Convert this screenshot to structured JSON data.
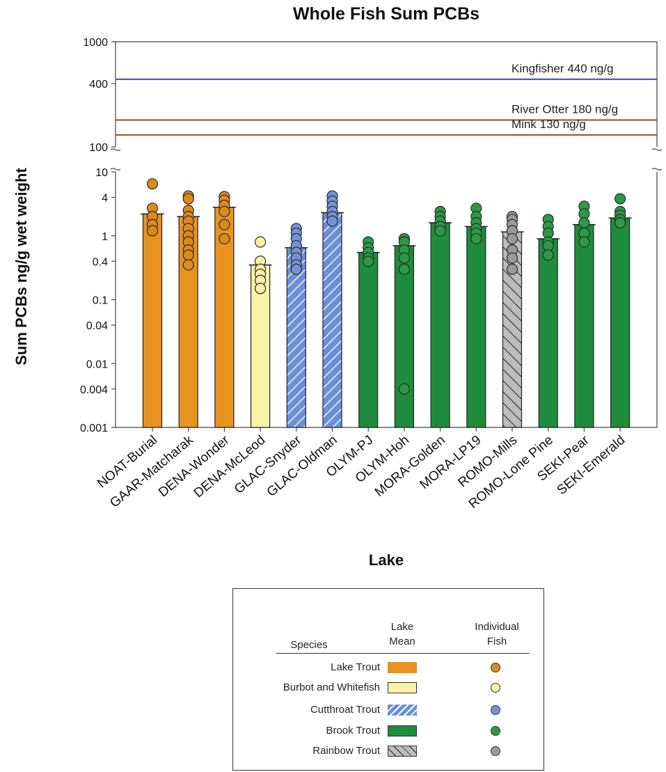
{
  "chart_data": {
    "type": "bar",
    "title": "Whole Fish Sum PCBs",
    "xlabel": "Lake",
    "ylabel": "Sum PCBs ng/g wet weight",
    "yscale": "log (broken axis)",
    "ylim_lower": [
      0.001,
      10
    ],
    "ylim_upper": [
      100,
      1000
    ],
    "yticks_lower": [
      "0.001",
      "0.004",
      "0.01",
      "0.04",
      "0.1",
      "0.4",
      "1",
      "4",
      "10"
    ],
    "yticks_upper": [
      "100",
      "400",
      "1000"
    ],
    "categories": [
      "NOAT-Burial",
      "GAAR-Matcharak",
      "DENA-Wonder",
      "DENA-McLeod",
      "GLAC-Snyder",
      "GLAC-Oldman",
      "OLYM-PJ",
      "OLYM-Hoh",
      "MORA-Golden",
      "MORA-LP19",
      "ROMO-Mills",
      "ROMO-Lone Pine",
      "SEKI-Pear",
      "SEKI-Emerald"
    ],
    "species": [
      "Lake Trout",
      "Lake Trout",
      "Lake Trout",
      "Burbot and Whitefish",
      "Cutthroat Trout",
      "Cutthroat Trout",
      "Brook Trout",
      "Brook Trout",
      "Brook Trout",
      "Brook Trout",
      "Rainbow Trout",
      "Brook Trout",
      "Brook Trout",
      "Brook Trout"
    ],
    "lake_means": [
      2.2,
      2.0,
      2.8,
      0.35,
      0.65,
      2.3,
      0.55,
      0.7,
      1.6,
      1.4,
      1.15,
      0.9,
      1.5,
      1.9
    ],
    "individual_fish": [
      [
        6.5,
        2.7,
        2.0,
        1.5,
        1.2
      ],
      [
        4.2,
        3.8,
        2.5,
        2.0,
        1.7,
        1.3,
        1.0,
        0.8,
        0.6,
        0.5,
        0.35
      ],
      [
        4.1,
        3.6,
        3.0,
        2.4,
        1.5,
        0.9
      ],
      [
        0.8,
        0.4,
        0.3,
        0.25,
        0.2,
        0.15
      ],
      [
        1.3,
        1.1,
        0.9,
        0.7,
        0.55,
        0.45,
        0.35,
        0.3
      ],
      [
        4.2,
        3.5,
        2.9,
        2.4,
        2.0,
        1.7
      ],
      [
        0.8,
        0.65,
        0.55,
        0.45,
        0.4
      ],
      [
        0.9,
        0.8,
        0.6,
        0.45,
        0.3,
        0.004
      ],
      [
        2.4,
        2.0,
        1.7,
        1.4,
        1.2
      ],
      [
        2.7,
        2.0,
        1.6,
        1.3,
        1.1,
        0.9
      ],
      [
        2.0,
        1.8,
        1.5,
        1.2,
        0.9,
        0.6,
        0.45,
        0.3
      ],
      [
        1.8,
        1.4,
        1.1,
        0.8,
        0.7,
        0.5
      ],
      [
        2.9,
        2.2,
        1.6,
        1.1,
        0.8
      ],
      [
        3.8,
        2.4,
        2.1,
        1.8,
        1.6
      ]
    ],
    "thresholds": [
      {
        "label": "Kingfisher 440 ng/g",
        "value": 440,
        "color": "#5b5ba8"
      },
      {
        "label": "River Otter 180 ng/g",
        "value": 180,
        "color": "#a0522d"
      },
      {
        "label": "Mink 130 ng/g",
        "value": 130,
        "color": "#a0522d"
      }
    ],
    "grid": false
  },
  "legend": {
    "header_species": "Species",
    "header_mean_1": "Lake",
    "header_mean_2": "Mean",
    "header_fish_1": "Individual",
    "header_fish_2": "Fish",
    "rows": [
      {
        "name": "Lake Trout",
        "key": "Lake Trout"
      },
      {
        "name": "Burbot and Whitefish",
        "key": "Burbot and Whitefish"
      },
      {
        "name": "Cutthroat Trout",
        "key": "Cutthroat Trout"
      },
      {
        "name": "Brook Trout",
        "key": "Brook Trout"
      },
      {
        "name": "Rainbow Trout",
        "key": "Rainbow Trout"
      }
    ]
  },
  "colors": {
    "Lake Trout": {
      "bar": "#e8921f",
      "dot": "#de8a1a"
    },
    "Burbot and Whitefish": {
      "bar": "#faf2a6",
      "dot": "#fbf1a4"
    },
    "Cutthroat Trout": {
      "bar": "#6b8ed6",
      "dot": "#7592d6"
    },
    "Brook Trout": {
      "bar": "#1e8c3c",
      "dot": "#2a9a45"
    },
    "Rainbow Trout": {
      "bar": "#bcbcbc",
      "dot": "#9a9a9a"
    }
  }
}
